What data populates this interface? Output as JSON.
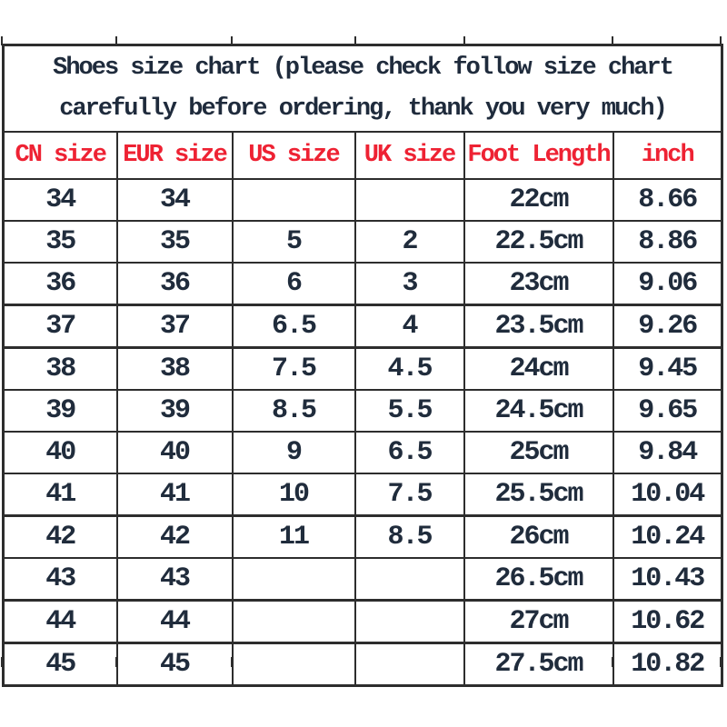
{
  "chart_data": {
    "type": "table",
    "title": "Shoes size chart (please check follow size chart carefully before ordering, thank you very much)",
    "columns": [
      "CN size",
      "EUR size",
      "US size",
      "UK size",
      "Foot Length",
      "inch"
    ],
    "rows": [
      [
        "34",
        "34",
        "",
        "",
        "22cm",
        "8.66"
      ],
      [
        "35",
        "35",
        "5",
        "2",
        "22.5cm",
        "8.86"
      ],
      [
        "36",
        "36",
        "6",
        "3",
        "23cm",
        "9.06"
      ],
      [
        "37",
        "37",
        "6.5",
        "4",
        "23.5cm",
        "9.26"
      ],
      [
        "38",
        "38",
        "7.5",
        "4.5",
        "24cm",
        "9.45"
      ],
      [
        "39",
        "39",
        "8.5",
        "5.5",
        "24.5cm",
        "9.65"
      ],
      [
        "40",
        "40",
        "9",
        "6.5",
        "25cm",
        "9.84"
      ],
      [
        "41",
        "41",
        "10",
        "7.5",
        "25.5cm",
        "10.04"
      ],
      [
        "42",
        "42",
        "11",
        "8.5",
        "26cm",
        "10.24"
      ],
      [
        "43",
        "43",
        "",
        "",
        "26.5cm",
        "10.43"
      ],
      [
        "44",
        "44",
        "",
        "",
        "27cm",
        "10.62"
      ],
      [
        "45",
        "45",
        "",
        "",
        "27.5cm",
        "10.82"
      ]
    ],
    "layout_hints": {
      "header_text_color": "#ee2233",
      "body_text_color": "#202c3c",
      "border_color": "#2d2d2d",
      "background_color": "#ffffff"
    }
  }
}
